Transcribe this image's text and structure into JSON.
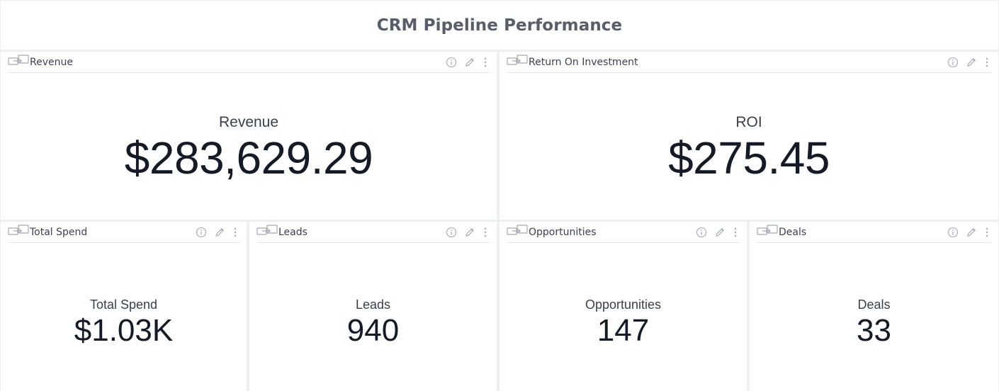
{
  "dashboard": {
    "title": "CRM Pipeline Performance"
  },
  "tiles": {
    "revenue": {
      "header": "Revenue",
      "label": "Revenue",
      "value": "$283,629.29"
    },
    "roi": {
      "header": "Return On Investment",
      "label": "ROI",
      "value": "$275.45"
    },
    "total_spend": {
      "header": "Total Spend",
      "label": "Total Spend",
      "value": "$1.03K"
    },
    "leads": {
      "header": "Leads",
      "label": "Leads",
      "value": "940"
    },
    "opportunities": {
      "header": "Opportunities",
      "label": "Opportunities",
      "value": "147"
    },
    "deals": {
      "header": "Deals",
      "label": "Deals",
      "value": "33"
    }
  },
  "icons": {
    "link": "linked-tiles-icon",
    "info": "info-icon",
    "edit": "pencil-icon",
    "menu": "more-vertical-icon"
  },
  "colors": {
    "background": "#eeeff1",
    "tile": "#ffffff",
    "title_text": "#585d69",
    "value_text": "#141a26",
    "icon": "#a3a8b2"
  }
}
